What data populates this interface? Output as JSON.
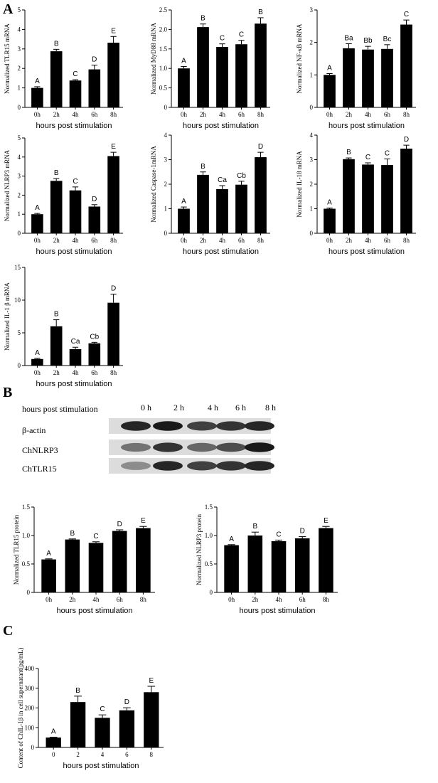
{
  "panels": {
    "a": "A",
    "b": "B",
    "c": "C"
  },
  "blot": {
    "header_label": "hours post stimulation",
    "timepoints": [
      "0 h",
      "2 h",
      "4 h",
      "6 h",
      "8 h"
    ],
    "rows": [
      "β-actin",
      "ChNLRP3",
      "ChTLR15"
    ],
    "bands": [
      [
        0.85,
        0.9,
        0.75,
        0.8,
        0.85
      ],
      [
        0.55,
        0.8,
        0.6,
        0.7,
        0.9
      ],
      [
        0.45,
        0.85,
        0.75,
        0.8,
        0.85
      ]
    ]
  },
  "chart_data": [
    {
      "type": "bar",
      "ylabel": "Normalized TLR15 mRNA",
      "xlabel": "hours post stimulation",
      "categories": [
        "0h",
        "2h",
        "4h",
        "6h",
        "8h"
      ],
      "values": [
        1.0,
        2.88,
        1.38,
        1.95,
        3.32
      ],
      "errors": [
        0.06,
        0.1,
        0.04,
        0.22,
        0.32
      ],
      "labels": [
        "A",
        "B",
        "C",
        "D",
        "E"
      ],
      "ylim": [
        0,
        5
      ],
      "yticks": [
        0,
        1,
        2,
        3,
        4,
        5
      ]
    },
    {
      "type": "bar",
      "ylabel": "Normalized MyD88 mRNA",
      "xlabel": "hours post stimulation",
      "categories": [
        "0h",
        "2h",
        "4h",
        "6h",
        "8h"
      ],
      "values": [
        1.0,
        2.06,
        1.55,
        1.62,
        2.15
      ],
      "errors": [
        0.05,
        0.08,
        0.08,
        0.1,
        0.15
      ],
      "labels": [
        "A",
        "B",
        "C",
        "C",
        "B"
      ],
      "ylim": [
        0,
        2.5
      ],
      "yticks": [
        0,
        0.5,
        1.0,
        1.5,
        2.0,
        2.5
      ]
    },
    {
      "type": "bar",
      "ylabel": "Normalized NF-κB mRNA",
      "xlabel": "hours post stimulation",
      "categories": [
        "0h",
        "2h",
        "4h",
        "6h",
        "8h"
      ],
      "values": [
        1.0,
        1.82,
        1.78,
        1.8,
        2.55
      ],
      "errors": [
        0.04,
        0.14,
        0.1,
        0.13,
        0.14
      ],
      "labels": [
        "A",
        "Ba",
        "Bb",
        "Bc",
        "C"
      ],
      "ylim": [
        0,
        3
      ],
      "yticks": [
        0,
        1,
        2,
        3
      ]
    },
    {
      "type": "bar",
      "ylabel": "Normalized NLRP3 mRNA",
      "xlabel": "hours post stimulation",
      "categories": [
        "0h",
        "2h",
        "4h",
        "6h",
        "8h"
      ],
      "values": [
        1.0,
        2.75,
        2.25,
        1.4,
        4.05
      ],
      "errors": [
        0.04,
        0.12,
        0.18,
        0.1,
        0.2
      ],
      "labels": [
        "A",
        "B",
        "C",
        "D",
        "E"
      ],
      "ylim": [
        0,
        5
      ],
      "yticks": [
        0,
        1,
        2,
        3,
        4,
        5
      ]
    },
    {
      "type": "bar",
      "ylabel": "Normalized Caspase-1mRNA",
      "xlabel": "hours post stimulation",
      "categories": [
        "0h",
        "2h",
        "4h",
        "6h",
        "8h"
      ],
      "values": [
        1.0,
        2.38,
        1.8,
        1.98,
        3.1
      ],
      "errors": [
        0.07,
        0.12,
        0.14,
        0.14,
        0.2
      ],
      "labels": [
        "A",
        "B",
        "Ca",
        "Cb",
        "D"
      ],
      "ylim": [
        0,
        4
      ],
      "yticks": [
        0,
        1,
        2,
        3,
        4
      ]
    },
    {
      "type": "bar",
      "ylabel": "Normalized IL-18 mRNA",
      "xlabel": "hours post stimulation",
      "categories": [
        "0h",
        "2h",
        "4h",
        "6h",
        "8h"
      ],
      "values": [
        1.0,
        3.02,
        2.8,
        2.78,
        3.45
      ],
      "errors": [
        0.03,
        0.05,
        0.07,
        0.25,
        0.14
      ],
      "labels": [
        "A",
        "B",
        "C",
        "C",
        "D"
      ],
      "ylim": [
        0,
        4
      ],
      "yticks": [
        0,
        1,
        2,
        3,
        4
      ]
    },
    {
      "type": "bar",
      "ylabel": "Normalized IL-1 β mRNA",
      "xlabel": "hours post stimulation",
      "categories": [
        "0h",
        "2h",
        "4h",
        "6h",
        "8h"
      ],
      "values": [
        1.0,
        6.0,
        2.5,
        3.4,
        9.6
      ],
      "errors": [
        0.1,
        1.0,
        0.3,
        0.15,
        1.3
      ],
      "labels": [
        "A",
        "B",
        "Ca",
        "Cb",
        "D"
      ],
      "ylim": [
        0,
        15
      ],
      "yticks": [
        0,
        5,
        10,
        15
      ]
    },
    {
      "type": "bar",
      "ylabel": "Normalized TLR15 protein",
      "xlabel": "hours post stimulation",
      "categories": [
        "0h",
        "2h",
        "4h",
        "6h",
        "8h"
      ],
      "values": [
        0.58,
        0.93,
        0.87,
        1.08,
        1.13
      ],
      "errors": [
        0.01,
        0.01,
        0.02,
        0.02,
        0.03
      ],
      "labels": [
        "A",
        "B",
        "C",
        "D",
        "E"
      ],
      "ylim": [
        0,
        1.5
      ],
      "yticks": [
        0,
        0.5,
        1.0,
        1.5
      ]
    },
    {
      "type": "bar",
      "ylabel": "Normalized NLRP3 protein",
      "xlabel": "hours post stimulation",
      "categories": [
        "0h",
        "2h",
        "4h",
        "6h",
        "8h"
      ],
      "values": [
        0.83,
        1.0,
        0.9,
        0.95,
        1.13
      ],
      "errors": [
        0.01,
        0.06,
        0.02,
        0.03,
        0.03
      ],
      "labels": [
        "A",
        "B",
        "C",
        "D",
        "E"
      ],
      "ylim": [
        0,
        1.5
      ],
      "yticks": [
        0,
        0.5,
        1.0,
        1.5
      ]
    },
    {
      "type": "bar",
      "ylabel": "Content of  ChIL-1β in cell supernatant(pg/mL)",
      "xlabel": "hours post stimulation",
      "categories": [
        "0",
        "2",
        "4",
        "6",
        "8"
      ],
      "values": [
        50,
        230,
        150,
        188,
        280
      ],
      "errors": [
        2,
        30,
        15,
        13,
        30
      ],
      "labels": [
        "A",
        "B",
        "C",
        "D",
        "E"
      ],
      "ylim": [
        0,
        400
      ],
      "yticks": [
        0,
        100,
        200,
        300,
        400
      ]
    }
  ]
}
